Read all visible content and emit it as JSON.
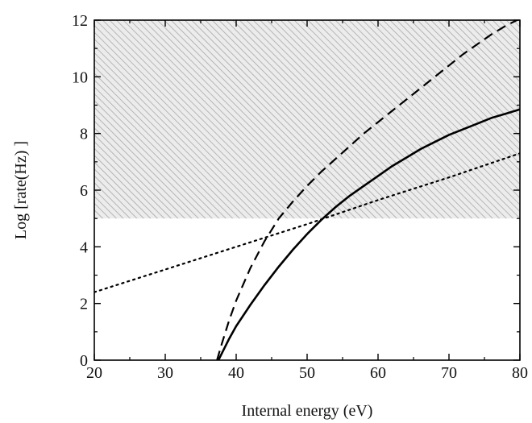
{
  "chart_data": {
    "type": "line",
    "title": "",
    "xlabel": "Internal energy (eV)",
    "ylabel": "Log [rate(Hz) ]",
    "xlim": [
      20,
      80
    ],
    "ylim": [
      0,
      12
    ],
    "xticks": [
      20,
      30,
      40,
      50,
      60,
      70,
      80
    ],
    "yticks": [
      0,
      2,
      4,
      6,
      8,
      10,
      12
    ],
    "grid": false,
    "legend": "none",
    "shaded_region": {
      "y_from": 5,
      "y_to": 12,
      "fill": "hatched-gray"
    },
    "series": [
      {
        "style": "solid",
        "color": "#000000",
        "x": [
          37.5,
          38,
          39,
          40,
          42,
          44,
          46,
          48,
          50,
          52,
          54,
          56,
          58,
          60,
          62,
          64,
          66,
          68,
          70,
          72,
          74,
          76,
          78,
          80
        ],
        "y": [
          0.0,
          0.25,
          0.75,
          1.2,
          1.95,
          2.65,
          3.3,
          3.9,
          4.45,
          4.95,
          5.4,
          5.8,
          6.15,
          6.5,
          6.85,
          7.15,
          7.45,
          7.7,
          7.95,
          8.15,
          8.35,
          8.55,
          8.7,
          8.85
        ]
      },
      {
        "style": "dashed",
        "color": "#000000",
        "x": [
          37.3,
          38,
          39,
          40,
          42,
          44,
          46,
          48,
          50,
          52,
          54,
          56,
          58,
          60,
          62,
          64,
          66,
          68,
          70,
          72,
          74,
          76,
          78,
          80
        ],
        "y": [
          0.0,
          0.6,
          1.4,
          2.1,
          3.25,
          4.2,
          5.0,
          5.6,
          6.15,
          6.65,
          7.1,
          7.55,
          8.0,
          8.4,
          8.8,
          9.2,
          9.6,
          10.0,
          10.4,
          10.8,
          11.15,
          11.5,
          11.8,
          12.05
        ]
      },
      {
        "style": "dotted",
        "color": "#000000",
        "x": [
          20,
          30,
          40,
          50,
          60,
          70,
          80
        ],
        "y": [
          2.4,
          3.2,
          4.0,
          4.8,
          5.65,
          6.45,
          7.3
        ]
      }
    ]
  }
}
